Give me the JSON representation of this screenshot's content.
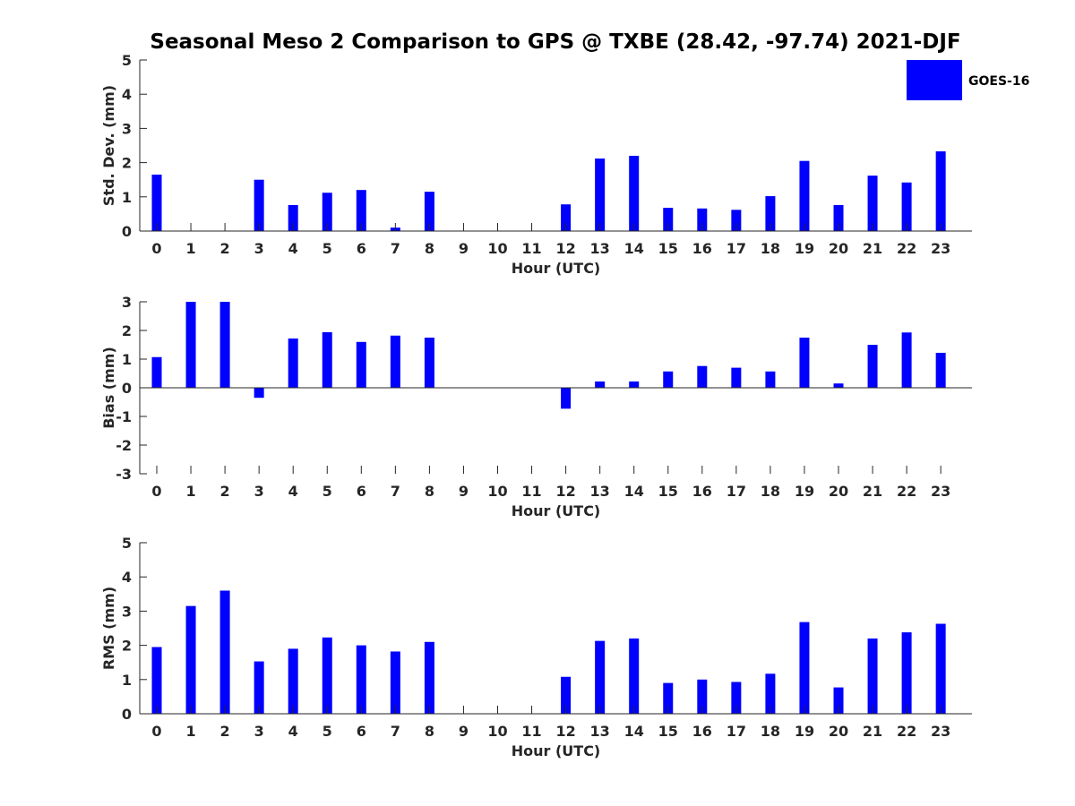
{
  "title": "Seasonal Meso 2 Comparison to GPS @ TXBE (28.42, -97.74) 2021-DJF",
  "legend": {
    "label": "GOES-16",
    "position": "top-right"
  },
  "colors": {
    "bar": "#0000ff",
    "axis": "#262626",
    "background": "#ffffff"
  },
  "chart_data": [
    {
      "type": "bar",
      "ylabel": "Std. Dev. (mm)",
      "xlabel": "Hour (UTC)",
      "ylim": [
        0,
        5
      ],
      "yticks": [
        0,
        1,
        2,
        3,
        4,
        5
      ],
      "categories": [
        "0",
        "1",
        "2",
        "3",
        "4",
        "5",
        "6",
        "7",
        "8",
        "9",
        "10",
        "11",
        "12",
        "13",
        "14",
        "15",
        "16",
        "17",
        "18",
        "19",
        "20",
        "21",
        "22",
        "23"
      ],
      "series": [
        {
          "name": "GOES-16",
          "values": [
            1.65,
            0,
            0,
            1.5,
            0.76,
            1.12,
            1.2,
            0.1,
            1.15,
            0,
            0,
            0,
            0.78,
            2.12,
            2.2,
            0.68,
            0.66,
            0.62,
            1.02,
            2.05,
            0.76,
            1.62,
            1.42,
            2.33
          ]
        }
      ]
    },
    {
      "type": "bar",
      "ylabel": "Bias (mm)",
      "xlabel": "Hour (UTC)",
      "ylim": [
        -3,
        3
      ],
      "yticks": [
        -3,
        -2,
        -1,
        0,
        1,
        2,
        3
      ],
      "categories": [
        "0",
        "1",
        "2",
        "3",
        "4",
        "5",
        "6",
        "7",
        "8",
        "9",
        "10",
        "11",
        "12",
        "13",
        "14",
        "15",
        "16",
        "17",
        "18",
        "19",
        "20",
        "21",
        "22",
        "23"
      ],
      "series": [
        {
          "name": "GOES-16",
          "values": [
            1.07,
            3.0,
            3.0,
            -0.35,
            1.72,
            1.94,
            1.6,
            1.82,
            1.75,
            0,
            0,
            0,
            -0.73,
            0.22,
            0.22,
            0.57,
            0.76,
            0.7,
            0.57,
            1.75,
            0.15,
            1.5,
            1.93,
            1.22
          ]
        }
      ]
    },
    {
      "type": "bar",
      "ylabel": "RMS (mm)",
      "xlabel": "Hour (UTC)",
      "ylim": [
        0,
        5
      ],
      "yticks": [
        0,
        1,
        2,
        3,
        4,
        5
      ],
      "categories": [
        "0",
        "1",
        "2",
        "3",
        "4",
        "5",
        "6",
        "7",
        "8",
        "9",
        "10",
        "11",
        "12",
        "13",
        "14",
        "15",
        "16",
        "17",
        "18",
        "19",
        "20",
        "21",
        "22",
        "23"
      ],
      "series": [
        {
          "name": "GOES-16",
          "values": [
            1.95,
            3.15,
            3.6,
            1.53,
            1.9,
            2.23,
            2.0,
            1.82,
            2.1,
            0,
            0,
            0,
            1.08,
            2.13,
            2.2,
            0.9,
            1.0,
            0.93,
            1.17,
            2.68,
            0.77,
            2.2,
            2.38,
            2.63
          ]
        }
      ]
    }
  ]
}
